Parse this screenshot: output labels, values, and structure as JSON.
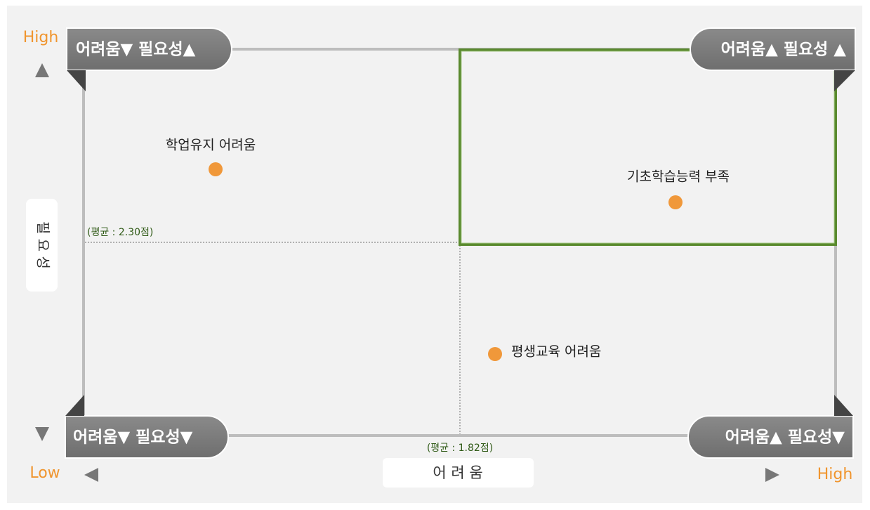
{
  "quadrants": {
    "top_left": "어려움▼ 필요성▲",
    "top_right": "어려움▲ 필요성 ▲",
    "bottom_left": "어려움▼ 필요성▼",
    "bottom_right": "어려움▲ 필요성▼"
  },
  "y_axis": {
    "label": "필 요 성",
    "high": "High",
    "average": "(평균 : 2.30점)"
  },
  "x_axis": {
    "label": "어 려 움",
    "low": "Low",
    "high": "High",
    "average": "(평균 : 1.82점)"
  },
  "points": [
    {
      "label": "학업유지 어려움"
    },
    {
      "label": "기초학습능력 부족"
    },
    {
      "label": "평생교육 어려움"
    }
  ]
}
